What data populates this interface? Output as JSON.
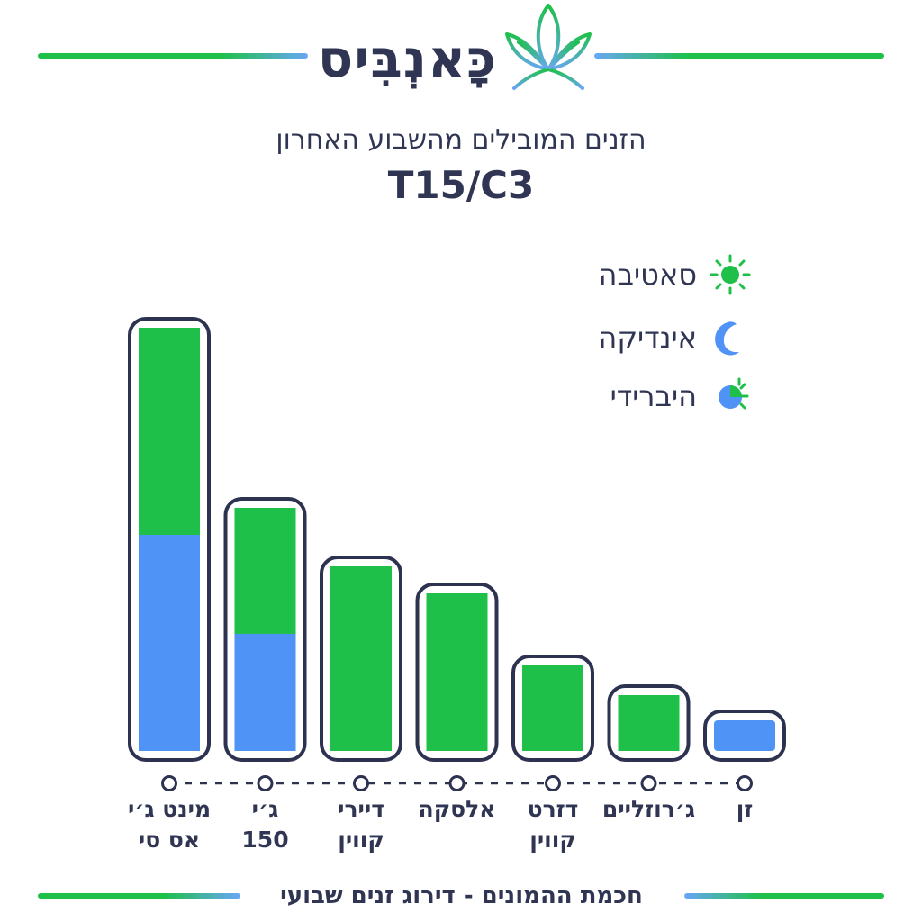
{
  "brand": {
    "name": "כָּאנְבִּיס"
  },
  "header": {
    "subtitle": "הזנים המובילים מהשבוע האחרון",
    "title": "T15/C3"
  },
  "legend": [
    {
      "label": "סאטיבה",
      "icon": "sun-icon"
    },
    {
      "label": "אינדיקה",
      "icon": "moon-icon"
    },
    {
      "label": "היברידי",
      "icon": "hybrid-sun-moon-icon"
    }
  ],
  "colors": {
    "sativa": "#1ec04a",
    "indica": "#4f93f6",
    "outline": "#2d3250",
    "text": "#2f3552"
  },
  "chart_data": {
    "type": "bar",
    "stacked": true,
    "categories": [
      [
        "מינט ג׳י",
        "אס סי"
      ],
      [
        "ג׳י",
        "150"
      ],
      [
        "דיירי",
        "קווין"
      ],
      [
        "אלסקה"
      ],
      [
        "דזרט",
        "קווין"
      ],
      [
        "ג׳רוזליים"
      ],
      [
        "זן"
      ]
    ],
    "series": [
      {
        "key": "indica",
        "values": [
          240,
          130,
          0,
          0,
          0,
          0,
          0
        ]
      },
      {
        "key": "sativa",
        "values": [
          230,
          140,
          205,
          175,
          95,
          62,
          0
        ]
      },
      {
        "key": "indica_top",
        "values": [
          0,
          0,
          0,
          0,
          0,
          0,
          34
        ]
      }
    ]
  },
  "footer": {
    "text": "חכמת ההמונים - דירוג זנים שבועי"
  }
}
